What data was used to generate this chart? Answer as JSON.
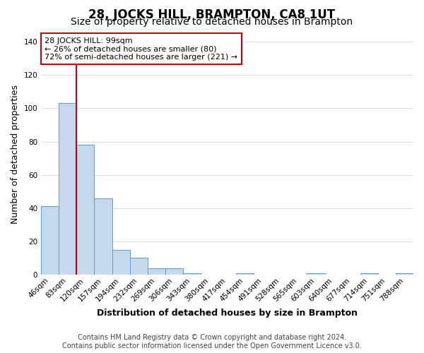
{
  "title": "28, JOCKS HILL, BRAMPTON, CA8 1UT",
  "subtitle": "Size of property relative to detached houses in Brampton",
  "xlabel": "Distribution of detached houses by size in Brampton",
  "ylabel": "Number of detached properties",
  "categories": [
    "46sqm",
    "83sqm",
    "120sqm",
    "157sqm",
    "194sqm",
    "232sqm",
    "269sqm",
    "306sqm",
    "343sqm",
    "380sqm",
    "417sqm",
    "454sqm",
    "491sqm",
    "528sqm",
    "565sqm",
    "603sqm",
    "640sqm",
    "677sqm",
    "714sqm",
    "751sqm",
    "788sqm"
  ],
  "values": [
    41,
    103,
    78,
    46,
    15,
    10,
    4,
    4,
    1,
    0,
    0,
    1,
    0,
    0,
    0,
    1,
    0,
    0,
    1,
    0,
    1
  ],
  "bar_color": "#c5d8ed",
  "bar_edge_color": "#5b9bd5",
  "red_line_x": 1.5,
  "annotation_text_line1": "28 JOCKS HILL: 99sqm",
  "annotation_text_line2": "← 26% of detached houses are smaller (80)",
  "annotation_text_line3": "72% of semi-detached houses are larger (221) →",
  "annotation_box_facecolor": "#ffffff",
  "annotation_border_color": "#cc0000",
  "footer_line1": "Contains HM Land Registry data © Crown copyright and database right 2024.",
  "footer_line2": "Contains public sector information licensed under the Open Government Licence v3.0.",
  "ylim": [
    0,
    145
  ],
  "yticks": [
    0,
    20,
    40,
    60,
    80,
    100,
    120,
    140
  ],
  "title_fontsize": 12,
  "subtitle_fontsize": 10,
  "xlabel_fontsize": 9,
  "ylabel_fontsize": 9,
  "tick_fontsize": 7.5,
  "annotation_fontsize": 8,
  "footer_fontsize": 7,
  "background_color": "#ffffff",
  "grid_color": "#e0e0e0"
}
